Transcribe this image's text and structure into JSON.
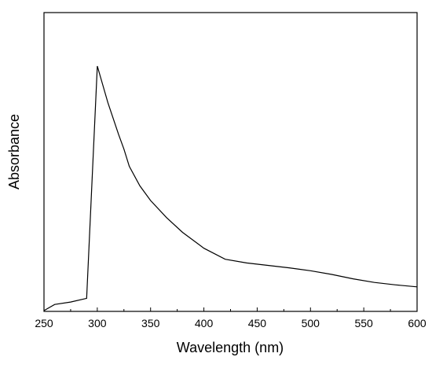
{
  "chart_data": {
    "type": "line",
    "xlabel": "Wavelength (nm)",
    "ylabel": "Absorbance",
    "xlim": [
      250,
      600
    ],
    "x_ticks": [
      "250",
      "300",
      "350",
      "400",
      "450",
      "500",
      "550",
      "600"
    ],
    "y_tick_labels_shown": false,
    "grid": false,
    "legend": "none",
    "series": [
      {
        "line_color": "#000000",
        "points": [
          [
            250,
            0.0
          ],
          [
            260,
            0.025
          ],
          [
            275,
            0.035
          ],
          [
            290,
            0.05
          ],
          [
            300,
            1.0
          ],
          [
            310,
            0.85
          ],
          [
            320,
            0.72
          ],
          [
            325,
            0.66
          ],
          [
            330,
            0.59
          ],
          [
            340,
            0.51
          ],
          [
            350,
            0.45
          ],
          [
            365,
            0.38
          ],
          [
            380,
            0.32
          ],
          [
            400,
            0.255
          ],
          [
            420,
            0.21
          ],
          [
            440,
            0.195
          ],
          [
            460,
            0.185
          ],
          [
            480,
            0.175
          ],
          [
            500,
            0.163
          ],
          [
            520,
            0.148
          ],
          [
            540,
            0.13
          ],
          [
            560,
            0.115
          ],
          [
            580,
            0.105
          ],
          [
            600,
            0.097
          ]
        ]
      }
    ]
  }
}
